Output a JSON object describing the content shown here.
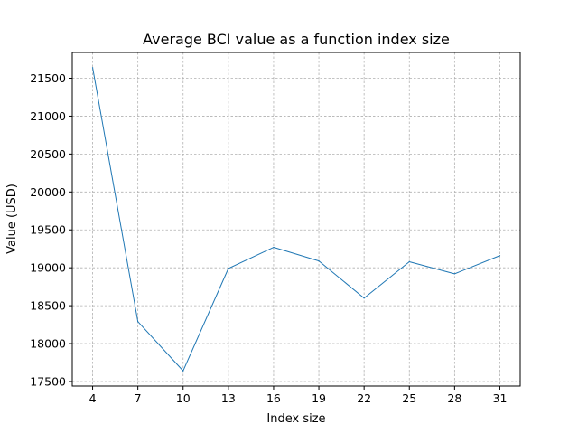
{
  "chart_data": {
    "type": "line",
    "title": "Average BCI value as a function index size",
    "xlabel": "Index size",
    "ylabel": "Value (USD)",
    "x": [
      4,
      7,
      10,
      13,
      16,
      19,
      22,
      25,
      28,
      31
    ],
    "series": [
      {
        "values": [
          21640,
          18290,
          17640,
          18990,
          19270,
          19090,
          18600,
          19080,
          18920,
          19160
        ],
        "color": "#1f77b4"
      }
    ],
    "xticks": [
      4,
      7,
      10,
      13,
      16,
      19,
      22,
      25,
      28,
      31
    ],
    "yticks": [
      17500,
      18000,
      18500,
      19000,
      19500,
      20000,
      20500,
      21000,
      21500
    ],
    "xlim": [
      2.65,
      32.35
    ],
    "ylim": [
      17440,
      21840
    ],
    "grid": true,
    "grid_style": "dashed",
    "grid_color": "#b0b0b0"
  }
}
